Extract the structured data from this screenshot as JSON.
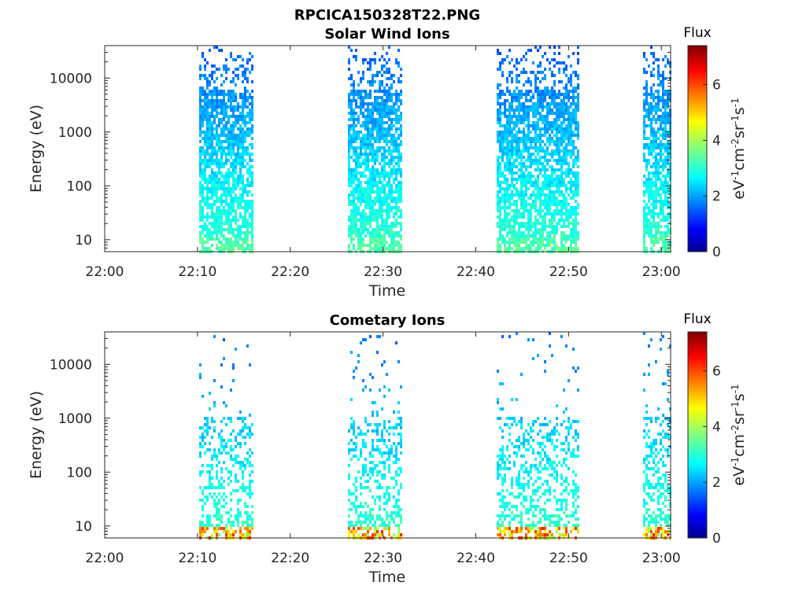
{
  "figure_title": "RPCICA150328T22.PNG",
  "chart_data": [
    {
      "type": "heatmap",
      "title": "Solar Wind Ions",
      "xlabel": "Time",
      "ylabel": "Energy (eV)",
      "y_scale": "log",
      "x_ticks": [
        "22:00",
        "22:10",
        "22:20",
        "22:30",
        "22:40",
        "22:50",
        "23:00"
      ],
      "x_range": [
        "22:00",
        "23:01"
      ],
      "y_ticks": [
        "10",
        "100",
        "1000",
        "10000"
      ],
      "y_range": [
        6,
        40000
      ],
      "grid": false,
      "colorbar": {
        "title": "Flux",
        "label": "eV-1cm-2sr-1s-1",
        "colormap": "jet",
        "ticks": [
          "0",
          "2",
          "4",
          "6"
        ],
        "range": [
          0,
          7.4
        ]
      },
      "activity_intervals": [
        [
          "22:10",
          "22:16"
        ],
        [
          "22:26",
          "22:32"
        ],
        [
          "22:42",
          "22:51"
        ],
        [
          "22:58",
          "23:01"
        ]
      ]
    },
    {
      "type": "heatmap",
      "title": "Cometary Ions",
      "xlabel": "Time",
      "ylabel": "Energy (eV)",
      "y_scale": "log",
      "x_ticks": [
        "22:00",
        "22:10",
        "22:20",
        "22:30",
        "22:40",
        "22:50",
        "23:00"
      ],
      "x_range": [
        "22:00",
        "23:01"
      ],
      "y_ticks": [
        "10",
        "100",
        "1000",
        "10000"
      ],
      "y_range": [
        6,
        40000
      ],
      "grid": false,
      "colorbar": {
        "title": "Flux",
        "label": "eV-1cm-2sr-1s-1",
        "colormap": "jet",
        "ticks": [
          "0",
          "2",
          "4",
          "6"
        ],
        "range": [
          0,
          7.4
        ]
      },
      "activity_intervals": [
        [
          "22:10",
          "22:16"
        ],
        [
          "22:26",
          "22:32"
        ],
        [
          "22:42",
          "22:51"
        ],
        [
          "22:58",
          "23:01"
        ]
      ]
    }
  ]
}
